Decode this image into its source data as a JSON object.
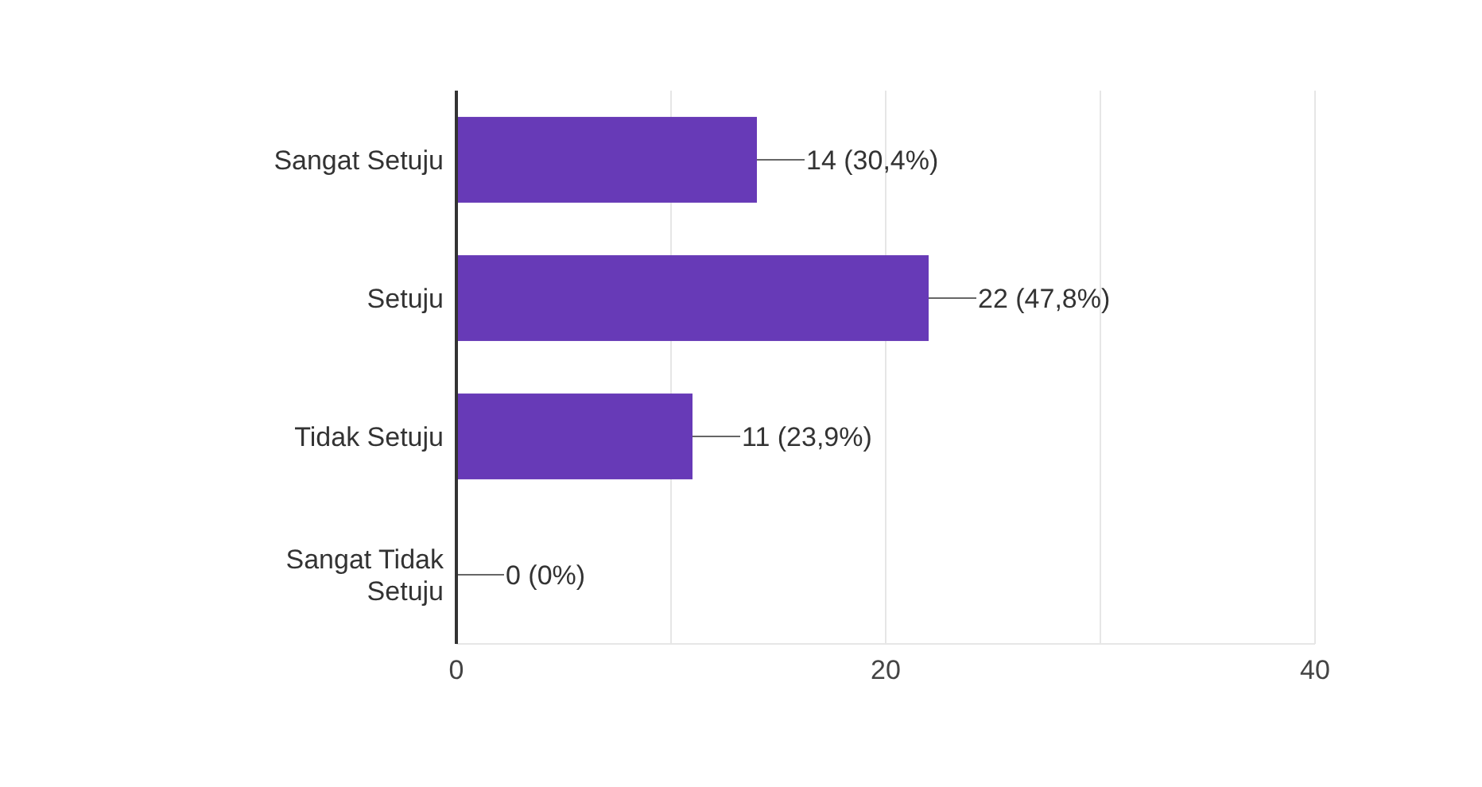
{
  "chart_data": {
    "type": "bar",
    "orientation": "horizontal",
    "categories": [
      "Sangat Setuju",
      "Setuju",
      "Tidak Setuju",
      "Sangat Tidak Setuju"
    ],
    "values": [
      14,
      22,
      11,
      0
    ],
    "value_labels": [
      "14 (30,4%)",
      "22 (47,8%)",
      "11 (23,9%)",
      "0 (0%)"
    ],
    "color": "#673ab7",
    "xlim": [
      0,
      40
    ],
    "xticks": [
      0,
      {
        "value": 10,
        "label": null
      },
      20,
      {
        "value": 30,
        "label": null
      },
      40
    ],
    "grid": "x"
  }
}
